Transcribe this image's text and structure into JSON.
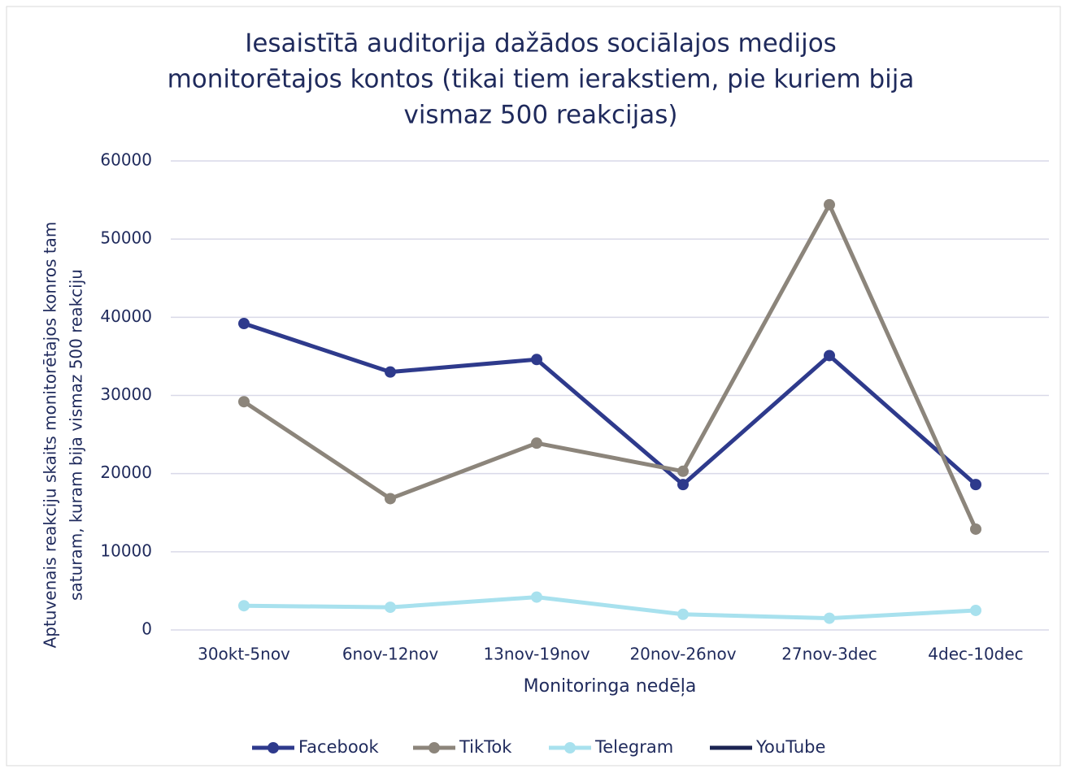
{
  "chart_data": {
    "type": "line",
    "title": [
      "Iesaistītā auditorija dažādos sociālajos medijos",
      "monitorētajos kontos (tikai tiem ierakstiem, pie kuriem bija",
      "vismaz 500 reakcijas)"
    ],
    "x_label": "Monitoringa nedēļa",
    "y_label": [
      "Aptuvenais reakciju skaits monitorētajos konros tam",
      "saturam, kuram bija vismaz 500 reakciju"
    ],
    "categories": [
      "30okt-5nov",
      "6nov-12nov",
      "13nov-19nov",
      "20nov-26nov",
      "27nov-3dec",
      "4dec-10dec"
    ],
    "series": [
      {
        "name": "Facebook",
        "color": "#2e3a8c",
        "values": [
          39200,
          33000,
          34600,
          18600,
          35100,
          18600
        ]
      },
      {
        "name": "TikTok",
        "color": "#8c857b",
        "values": [
          29200,
          16800,
          23900,
          20300,
          54400,
          12900
        ]
      },
      {
        "name": "Telegram",
        "color": "#a8e1ee",
        "values": [
          3100,
          2900,
          4200,
          2000,
          1500,
          2500
        ]
      },
      {
        "name": "YouTube",
        "color": "#1b2452",
        "values": [
          null,
          null,
          null,
          null,
          null,
          null
        ]
      }
    ],
    "ylim": [
      0,
      60000
    ],
    "yticks": [
      0,
      10000,
      20000,
      30000,
      40000,
      50000,
      60000
    ],
    "grid": true,
    "legend": "bottom"
  }
}
